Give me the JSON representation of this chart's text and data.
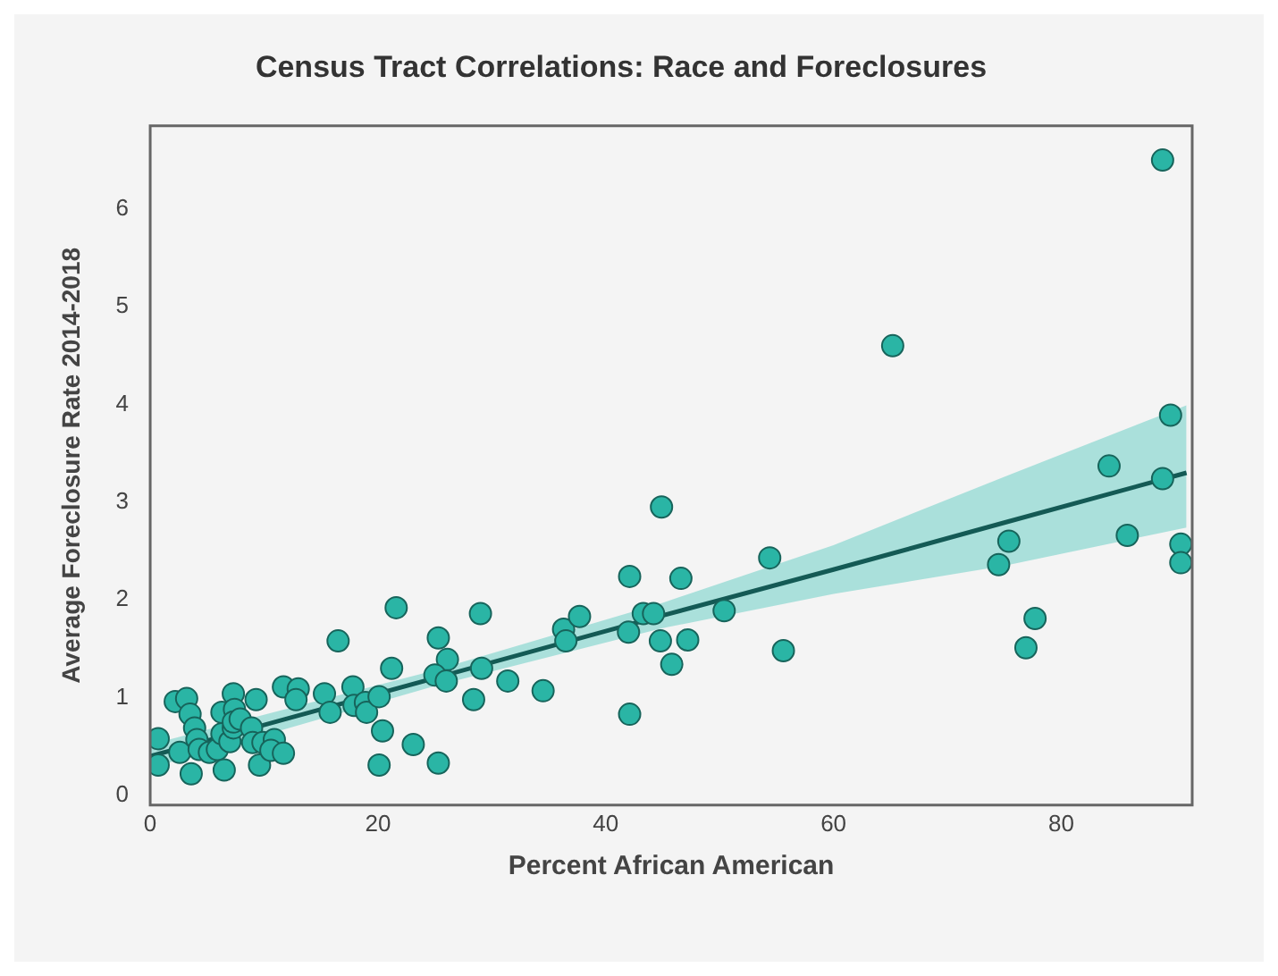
{
  "chart_data": {
    "type": "scatter",
    "title": "Census Tract Correlations: Race and Foreclosures",
    "xlabel": "Percent African American",
    "ylabel": "Average Foreclosure Rate 2014-2018",
    "xlim": [
      0,
      91.5
    ],
    "ylim": [
      -0.1,
      6.85
    ],
    "xticks": [
      0,
      20,
      40,
      60,
      80
    ],
    "yticks": [
      0,
      1,
      2,
      3,
      4,
      5,
      6
    ],
    "grid": false,
    "legend": false,
    "marker": "circle",
    "series": [
      {
        "type": "scatter",
        "color": "#2ab5a5",
        "x": [
          0.7,
          0.7,
          2.2,
          3.2,
          3.5,
          3.9,
          4.1,
          2.6,
          3.6,
          4.3,
          5.2,
          5.9,
          6.3,
          6.5,
          7.0,
          7.3,
          6.3,
          7.3,
          7.4,
          7.3,
          7.9,
          8.9,
          9.3,
          9.0,
          9.6,
          9.9,
          10.9,
          10.6,
          11.7,
          11.7,
          13.0,
          12.8,
          15.3,
          15.8,
          16.5,
          17.8,
          17.9,
          18.9,
          19.0,
          20.1,
          20.4,
          21.6,
          20.1,
          21.2,
          23.1,
          25.3,
          25.3,
          26.1,
          25.0,
          26.0,
          28.4,
          29.0,
          29.1,
          31.4,
          34.5,
          36.3,
          36.5,
          37.7,
          42.1,
          42.0,
          42.1,
          43.3,
          44.2,
          44.9,
          44.8,
          45.8,
          46.6,
          47.2,
          50.4,
          54.4,
          55.6,
          65.2,
          74.5,
          75.4,
          76.9,
          77.7,
          84.2,
          85.8,
          88.9,
          88.9,
          89.6,
          90.5,
          90.5
        ],
        "values": [
          0.58,
          0.31,
          0.96,
          0.99,
          0.83,
          0.69,
          0.57,
          0.44,
          0.22,
          0.47,
          0.44,
          0.47,
          0.63,
          0.26,
          0.55,
          0.69,
          0.85,
          1.04,
          0.88,
          0.75,
          0.78,
          0.69,
          0.98,
          0.54,
          0.31,
          0.54,
          0.57,
          0.46,
          0.43,
          1.11,
          1.09,
          0.98,
          1.04,
          0.85,
          1.58,
          1.11,
          0.92,
          0.95,
          0.85,
          1.01,
          0.66,
          1.92,
          0.31,
          1.3,
          0.52,
          0.33,
          1.61,
          1.39,
          1.23,
          1.17,
          0.98,
          1.86,
          1.3,
          1.17,
          1.07,
          1.7,
          1.58,
          1.83,
          2.24,
          1.67,
          0.83,
          1.86,
          1.86,
          2.95,
          1.58,
          1.34,
          2.22,
          1.59,
          1.89,
          2.43,
          1.48,
          4.6,
          2.36,
          2.6,
          1.51,
          1.81,
          3.37,
          2.66,
          6.5,
          3.24,
          3.89,
          2.57,
          2.38
        ]
      },
      {
        "type": "line",
        "marker": "none",
        "color": "#145a55",
        "x": [
          0,
          25,
          45,
          60,
          75,
          91
        ],
        "values": [
          0.4,
          1.2,
          1.84,
          2.31,
          2.79,
          3.3
        ],
        "lower": [
          0.28,
          1.12,
          1.71,
          2.06,
          2.35,
          2.74
        ],
        "upper": [
          0.52,
          1.28,
          1.97,
          2.56,
          3.26,
          3.99
        ]
      }
    ]
  }
}
